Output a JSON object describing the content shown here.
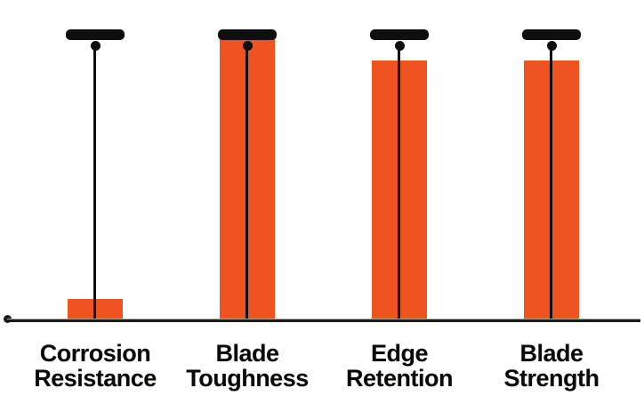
{
  "chart_data": {
    "type": "bar",
    "title": "",
    "xlabel": "",
    "ylabel": "",
    "categories": [
      "Corrosion\nResistance",
      "Blade\nToughness",
      "Edge\nRetention",
      "Blade\nStrength"
    ],
    "values": [
      0.75,
      10,
      9,
      9
    ],
    "ylim": [
      0,
      10
    ],
    "grid": false,
    "legend": false,
    "max_marker_value": 10,
    "max_marker_shape": "t-pin",
    "bar_color": "#F05322",
    "marker_color": "#0f0f0f",
    "axis_color": "#1b1b1b",
    "label_color": "#0a0a0a"
  }
}
